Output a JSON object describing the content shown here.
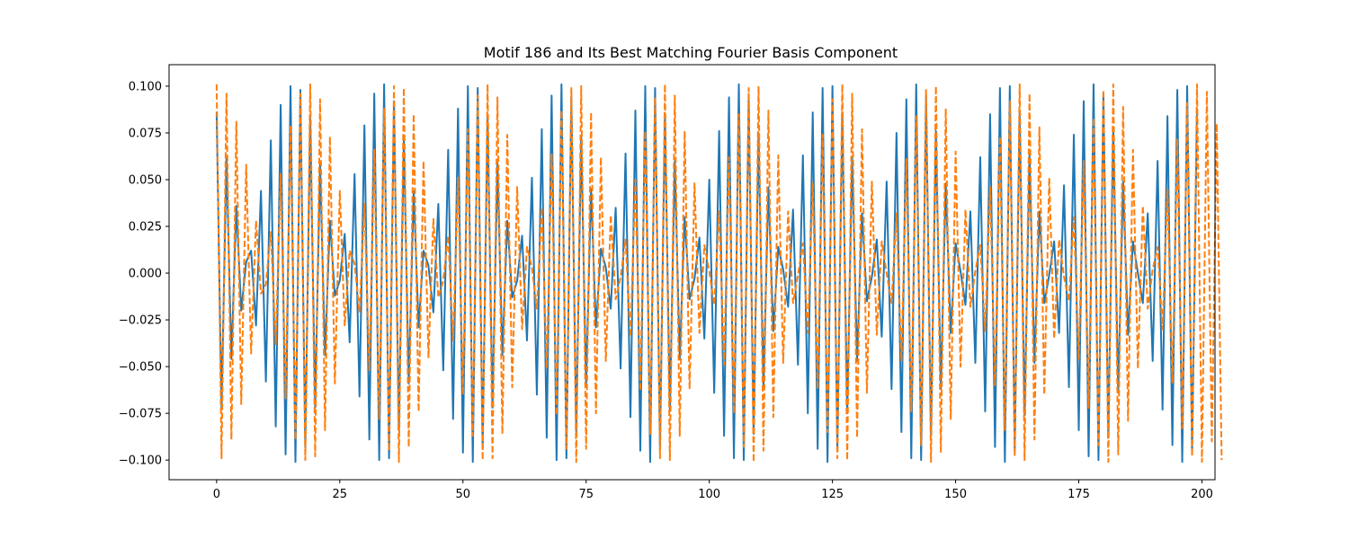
{
  "chart_data": {
    "type": "line",
    "title": "Motif 186 and Its Best Matching Fourier Basis Component",
    "xlabel": "",
    "ylabel": "",
    "xlim": [
      -9.65,
      202.65
    ],
    "ylim": [
      -0.1105,
      0.1115
    ],
    "x_ticks": [
      0,
      25,
      50,
      75,
      100,
      125,
      150,
      175,
      200
    ],
    "x_tick_labels": [
      "0",
      "25",
      "50",
      "75",
      "100",
      "125",
      "150",
      "175",
      "200"
    ],
    "y_ticks": [
      -0.1,
      -0.075,
      -0.05,
      -0.025,
      0.0,
      0.025,
      0.05,
      0.075,
      0.1
    ],
    "y_tick_labels": [
      "−0.100",
      "−0.075",
      "−0.050",
      "−0.025",
      "0.000",
      "0.025",
      "0.050",
      "0.075",
      "0.100"
    ],
    "grid": false,
    "legend": "none",
    "n_points": 194,
    "series": [
      {
        "style": "solid",
        "color": "#1f77b4",
        "model": "0.1*cos(2*pi*(k/2 + 2/193)*x) + 0.1*cos(2*pi*(k/2 - 1/193)*x) envelope: period ~20 samples, amplitude ~0.10",
        "values": [
          0.086,
          -0.073,
          0.062,
          -0.046,
          0.036,
          -0.02,
          0.006,
          0.012,
          -0.028,
          0.044,
          -0.058,
          0.071,
          -0.082,
          0.09,
          -0.097,
          0.1,
          -0.101,
          0.098,
          -0.093,
          0.083,
          -0.072,
          0.058,
          -0.044,
          0.028,
          -0.012,
          -0.004,
          0.021,
          -0.037,
          0.053,
          -0.066,
          0.079,
          -0.089,
          0.096,
          -0.1,
          0.101,
          -0.099,
          0.092,
          -0.084,
          0.072,
          -0.059,
          0.044,
          -0.029,
          0.012,
          0.004,
          -0.021,
          0.037,
          -0.052,
          0.066,
          -0.078,
          0.088,
          -0.096,
          0.1,
          -0.101,
          0.099,
          -0.093,
          0.084,
          -0.072,
          0.059,
          -0.044,
          0.028,
          -0.013,
          -0.004,
          0.02,
          -0.036,
          0.051,
          -0.065,
          0.077,
          -0.088,
          0.095,
          -0.1,
          0.101,
          -0.099,
          0.094,
          -0.085,
          0.073,
          -0.06,
          0.045,
          -0.029,
          0.013,
          0.003,
          -0.019,
          0.035,
          -0.051,
          0.064,
          -0.077,
          0.087,
          -0.095,
          0.1,
          -0.101,
          0.099,
          -0.094,
          0.085,
          -0.074,
          0.06,
          -0.046,
          0.03,
          -0.014,
          -0.003,
          0.019,
          -0.035,
          0.05,
          -0.064,
          0.076,
          -0.087,
          0.094,
          -0.099,
          0.101,
          -0.1,
          0.094,
          -0.086,
          0.075,
          -0.061,
          0.046,
          -0.031,
          0.014,
          0.002,
          -0.018,
          0.034,
          -0.049,
          0.063,
          -0.075,
          0.086,
          -0.094,
          0.099,
          -0.101,
          0.1,
          -0.095,
          0.086,
          -0.075,
          0.062,
          -0.047,
          0.032,
          -0.015,
          -0.002,
          0.018,
          -0.034,
          0.049,
          -0.062,
          0.075,
          -0.085,
          0.093,
          -0.099,
          0.101,
          -0.1,
          0.095,
          -0.087,
          0.076,
          -0.062,
          0.048,
          -0.032,
          0.016,
          0.001,
          -0.017,
          0.033,
          -0.048,
          0.062,
          -0.074,
          0.085,
          -0.093,
          0.099,
          -0.101,
          0.1,
          -0.095,
          0.087,
          -0.076,
          0.063,
          -0.048,
          0.033,
          -0.016,
          -0.001,
          0.017,
          -0.032,
          0.047,
          -0.061,
          0.074,
          -0.084,
          0.092,
          -0.098,
          0.101,
          -0.1,
          0.096,
          -0.088,
          0.077,
          -0.064,
          0.049,
          -0.033,
          0.017,
          0.0,
          -0.016,
          0.032,
          -0.047,
          0.06,
          -0.073,
          0.084,
          -0.092,
          0.098,
          -0.101,
          0.1,
          -0.096,
          0.088
        ]
      },
      {
        "style": "dashed",
        "color": "#ff7f0e",
        "model": "envelope-modulated alternating signal, period ~20 samples, amplitude ~0.10",
        "values": [
          0.101,
          -0.099,
          0.096,
          -0.089,
          0.081,
          -0.07,
          0.058,
          -0.043,
          0.028,
          -0.011,
          -0.006,
          0.022,
          -0.038,
          0.053,
          -0.067,
          0.079,
          -0.089,
          0.096,
          -0.1,
          0.101,
          -0.098,
          0.093,
          -0.084,
          0.073,
          -0.059,
          0.044,
          -0.028,
          0.012,
          0.005,
          -0.021,
          0.037,
          -0.052,
          0.066,
          -0.078,
          0.088,
          -0.095,
          0.1,
          -0.101,
          0.099,
          -0.093,
          0.085,
          -0.074,
          0.06,
          -0.045,
          0.029,
          -0.013,
          -0.004,
          0.02,
          -0.036,
          0.051,
          -0.065,
          0.077,
          -0.087,
          0.095,
          -0.1,
          0.101,
          -0.099,
          0.094,
          -0.086,
          0.074,
          -0.061,
          0.046,
          -0.03,
          0.014,
          0.003,
          -0.019,
          0.035,
          -0.051,
          0.064,
          -0.076,
          0.087,
          -0.094,
          0.099,
          -0.101,
          0.1,
          -0.094,
          0.086,
          -0.075,
          0.062,
          -0.047,
          0.031,
          -0.014,
          -0.002,
          0.018,
          -0.034,
          0.05,
          -0.063,
          0.076,
          -0.086,
          0.094,
          -0.099,
          0.101,
          -0.1,
          0.095,
          -0.087,
          0.076,
          -0.062,
          0.048,
          -0.032,
          0.015,
          0.001,
          -0.017,
          0.033,
          -0.049,
          0.062,
          -0.075,
          0.085,
          -0.093,
          0.099,
          -0.101,
          0.1,
          -0.095,
          0.087,
          -0.077,
          0.063,
          -0.048,
          0.033,
          -0.016,
          -0.001,
          0.016,
          -0.032,
          0.048,
          -0.062,
          0.074,
          -0.085,
          0.093,
          -0.099,
          0.101,
          -0.1,
          0.096,
          -0.088,
          0.077,
          -0.064,
          0.049,
          -0.033,
          0.017,
          0.0,
          -0.016,
          0.032,
          -0.047,
          0.061,
          -0.074,
          0.084,
          -0.092,
          0.098,
          -0.101,
          0.1,
          -0.096,
          0.088,
          -0.078,
          0.065,
          -0.05,
          0.034,
          -0.018,
          0.001,
          0.015,
          -0.031,
          0.046,
          -0.06,
          0.073,
          -0.084,
          0.092,
          -0.098,
          0.101,
          -0.1,
          0.096,
          -0.089,
          0.078,
          -0.065,
          0.051,
          -0.035,
          0.018,
          -0.002,
          -0.015,
          0.03,
          -0.046,
          0.06,
          -0.072,
          0.083,
          -0.092,
          0.098,
          -0.101,
          0.101,
          -0.097,
          0.089,
          -0.079,
          0.066,
          -0.051,
          0.036,
          -0.019,
          0.002,
          0.014,
          -0.03,
          0.045,
          -0.059,
          0.072,
          -0.083,
          0.091,
          -0.098,
          0.101,
          -0.101,
          0.097,
          -0.09,
          0.08,
          -0.1
        ]
      }
    ]
  }
}
